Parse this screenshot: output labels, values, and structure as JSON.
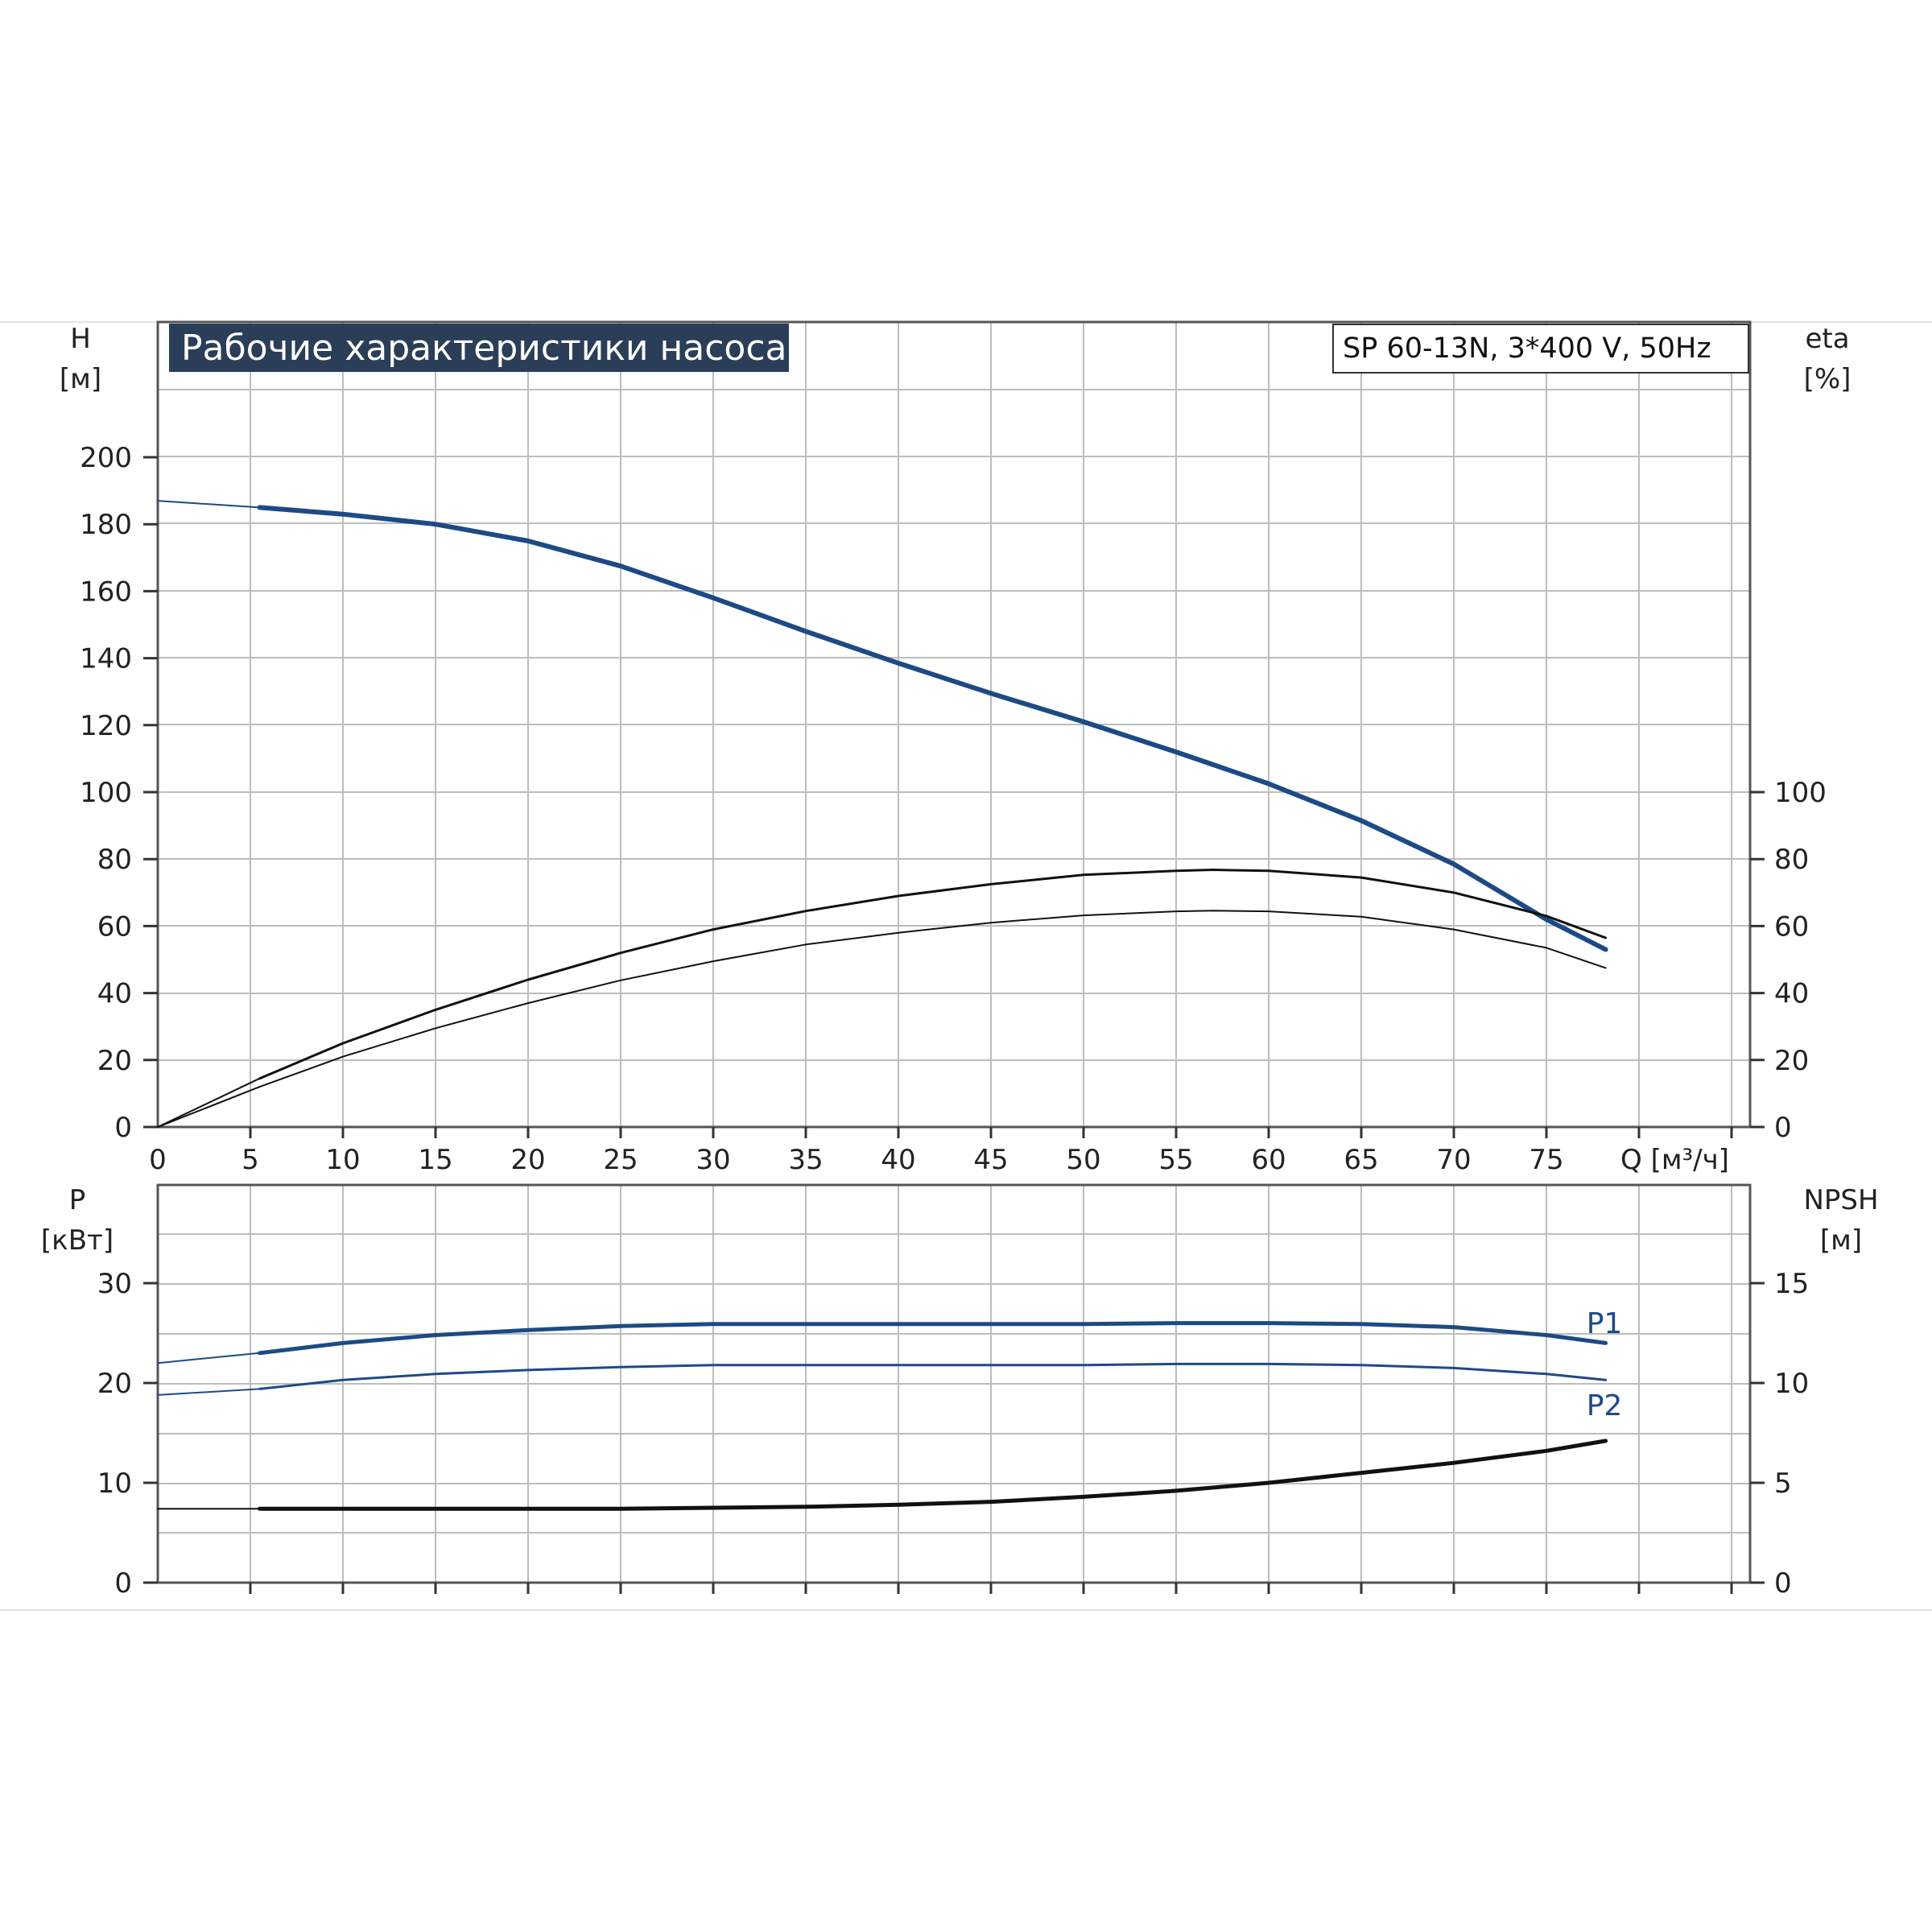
{
  "chart_data": [
    {
      "type": "line",
      "title": "Рабочие характеристики насоса",
      "subtitle": "SP 60-13N, 3*400 V, 50Hz",
      "xlabel": "Q [м³/ч]",
      "xlim": [
        0,
        86
      ],
      "xticks": [
        0,
        5,
        10,
        15,
        20,
        25,
        30,
        35,
        40,
        45,
        50,
        55,
        60,
        65,
        70,
        75
      ],
      "left_axis": {
        "label": "H",
        "unit": "[м]",
        "ylim": [
          0,
          200
        ],
        "ticks": [
          0,
          20,
          40,
          60,
          80,
          100,
          120,
          140,
          160,
          180,
          200
        ]
      },
      "right_axis": {
        "label": "eta",
        "unit": "[%]",
        "ylim": [
          0,
          100
        ],
        "ticks": [
          0,
          20,
          40,
          60,
          80,
          100
        ]
      },
      "grid": true,
      "series": [
        {
          "axis": "left",
          "color": "#1d4a86",
          "x": [
            0,
            5.5,
            10,
            15,
            20,
            25,
            30,
            35,
            40,
            45,
            50,
            55,
            60,
            65,
            70,
            75,
            78.2
          ],
          "y": [
            187,
            185,
            183,
            180,
            175,
            167.5,
            158,
            148,
            138.5,
            129.5,
            121,
            112,
            102.5,
            91.5,
            78.5,
            62,
            53
          ]
        },
        {
          "axis": "right",
          "color": "#111111",
          "x": [
            0,
            5.5,
            10,
            15,
            20,
            25,
            30,
            35,
            40,
            45,
            50,
            55,
            57,
            60,
            65,
            70,
            75,
            78.2
          ],
          "y": [
            0,
            14.5,
            25,
            35,
            44,
            52,
            59,
            64.5,
            69,
            72.5,
            75.3,
            76.5,
            76.8,
            76.5,
            74.5,
            70,
            63,
            56.5
          ]
        },
        {
          "axis": "right",
          "color": "#111111",
          "x": [
            0,
            5.5,
            10,
            15,
            20,
            25,
            30,
            35,
            40,
            45,
            50,
            55,
            57,
            60,
            65,
            70,
            75,
            78.2
          ],
          "y": [
            0,
            12,
            21,
            29.5,
            37,
            43.8,
            49.5,
            54.5,
            58,
            61,
            63.2,
            64.4,
            64.6,
            64.4,
            62.8,
            59,
            53.5,
            47.5
          ]
        }
      ]
    },
    {
      "type": "line",
      "xlim": [
        0,
        86
      ],
      "left_axis": {
        "label": "P",
        "unit": "[кВт]",
        "ylim": [
          0,
          30
        ],
        "ticks": [
          0,
          10,
          20,
          30
        ]
      },
      "right_axis": {
        "label": "NPSH",
        "unit": "[м]",
        "ylim": [
          0,
          15
        ],
        "ticks": [
          0,
          5,
          10,
          15
        ]
      },
      "grid": true,
      "series": [
        {
          "name": "P1",
          "axis": "left",
          "color": "#1d4a86",
          "x": [
            0,
            5.5,
            10,
            15,
            20,
            25,
            30,
            35,
            40,
            45,
            50,
            55,
            60,
            65,
            70,
            75,
            78.2
          ],
          "y": [
            22,
            23,
            24,
            24.8,
            25.3,
            25.7,
            25.9,
            25.9,
            25.9,
            25.9,
            25.9,
            26,
            26,
            25.9,
            25.6,
            24.8,
            24
          ]
        },
        {
          "name": "P2",
          "axis": "left",
          "color": "#1d4a86",
          "x": [
            0,
            5.5,
            10,
            15,
            20,
            25,
            30,
            35,
            40,
            45,
            50,
            55,
            60,
            65,
            70,
            75,
            78.2
          ],
          "y": [
            18.8,
            19.4,
            20.3,
            20.9,
            21.3,
            21.6,
            21.8,
            21.8,
            21.8,
            21.8,
            21.8,
            21.9,
            21.9,
            21.8,
            21.5,
            20.9,
            20.3
          ]
        },
        {
          "axis": "right",
          "color": "#111111",
          "x": [
            0,
            5.5,
            10,
            15,
            20,
            25,
            30,
            35,
            40,
            45,
            50,
            55,
            60,
            65,
            70,
            75,
            78.2
          ],
          "y": [
            3.7,
            3.7,
            3.7,
            3.7,
            3.7,
            3.7,
            3.75,
            3.8,
            3.9,
            4.05,
            4.3,
            4.6,
            5,
            5.5,
            6,
            6.6,
            7.1
          ]
        }
      ]
    }
  ]
}
